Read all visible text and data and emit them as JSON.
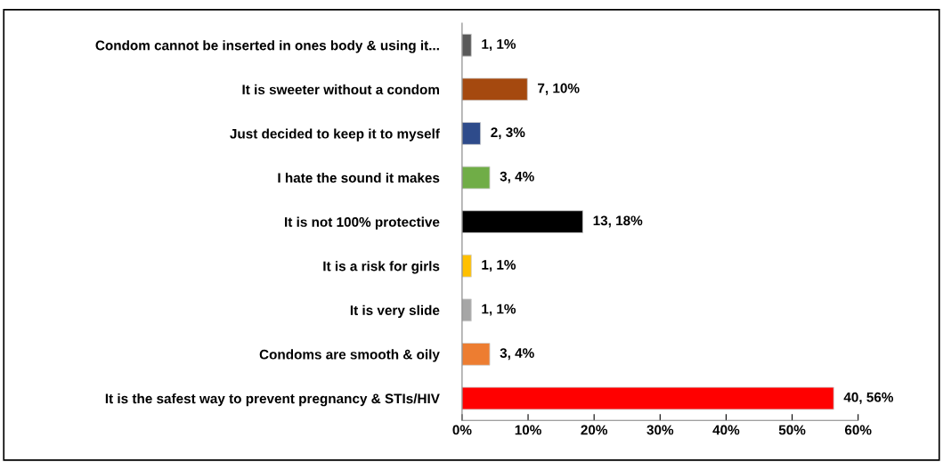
{
  "chart_data": {
    "type": "bar",
    "orientation": "horizontal",
    "categories": [
      "Condom cannot be inserted in ones body & using it...",
      "It is sweeter without a condom",
      "Just decided to keep it to myself",
      "I hate the sound it makes",
      "It is not 100% protective",
      "It is a risk for girls",
      "It is very slide",
      "Condoms are smooth & oily",
      "It is the safest way to prevent pregnancy & STIs/HIV"
    ],
    "values": [
      1.4,
      9.9,
      2.8,
      4.2,
      18.3,
      1.4,
      1.4,
      4.2,
      56.3
    ],
    "colors": [
      "#595959",
      "#a5490f",
      "#2e4b8b",
      "#70ad47",
      "#000000",
      "#ffc000",
      "#a6a6a6",
      "#ed7d31",
      "#ff0000"
    ],
    "value_labels": [
      "1, 1%",
      "7, 10%",
      "2, 3%",
      "3, 4%",
      "13, 18%",
      "1, 1%",
      "1, 1%",
      "3, 4%",
      "40, 56%"
    ],
    "xlim": [
      0,
      60
    ],
    "xticks": [
      {
        "value": 0,
        "label": "0%"
      },
      {
        "value": 10,
        "label": "10%"
      },
      {
        "value": 20,
        "label": "20%"
      },
      {
        "value": 30,
        "label": "30%"
      },
      {
        "value": 40,
        "label": "40%"
      },
      {
        "value": 50,
        "label": "50%"
      },
      {
        "value": 60,
        "label": "60%"
      }
    ],
    "grid": false,
    "legend": false
  }
}
